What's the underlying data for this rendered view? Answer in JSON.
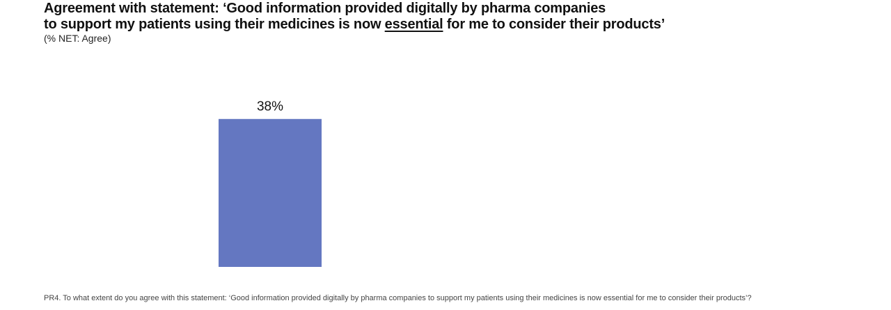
{
  "title": {
    "line1": "Agreement with statement: ‘Good information provided digitally by pharma companies",
    "line2_before": "to support my patients using their medicines is now ",
    "line2_emphasis": "essential",
    "line2_after": " for me to consider their products’"
  },
  "subtitle": "(% NET: Agree)",
  "footnote": "PR4. To what extent do you agree with this statement: ‘Good information provided digitally by pharma companies to support my patients using their medicines is now essential for me to consider their products’?",
  "colors": {
    "bar": "#6477c1"
  },
  "chart_data": {
    "type": "bar",
    "title": "Agreement with statement: ‘Good information provided digitally by pharma companies to support my patients using their medicines is now essential for me to consider their products’",
    "subtitle": "(% NET: Agree)",
    "categories": [
      ""
    ],
    "values": [
      38
    ],
    "value_labels": [
      "38%"
    ],
    "ylim": [
      0,
      100
    ],
    "grid": false,
    "legend": "none"
  }
}
